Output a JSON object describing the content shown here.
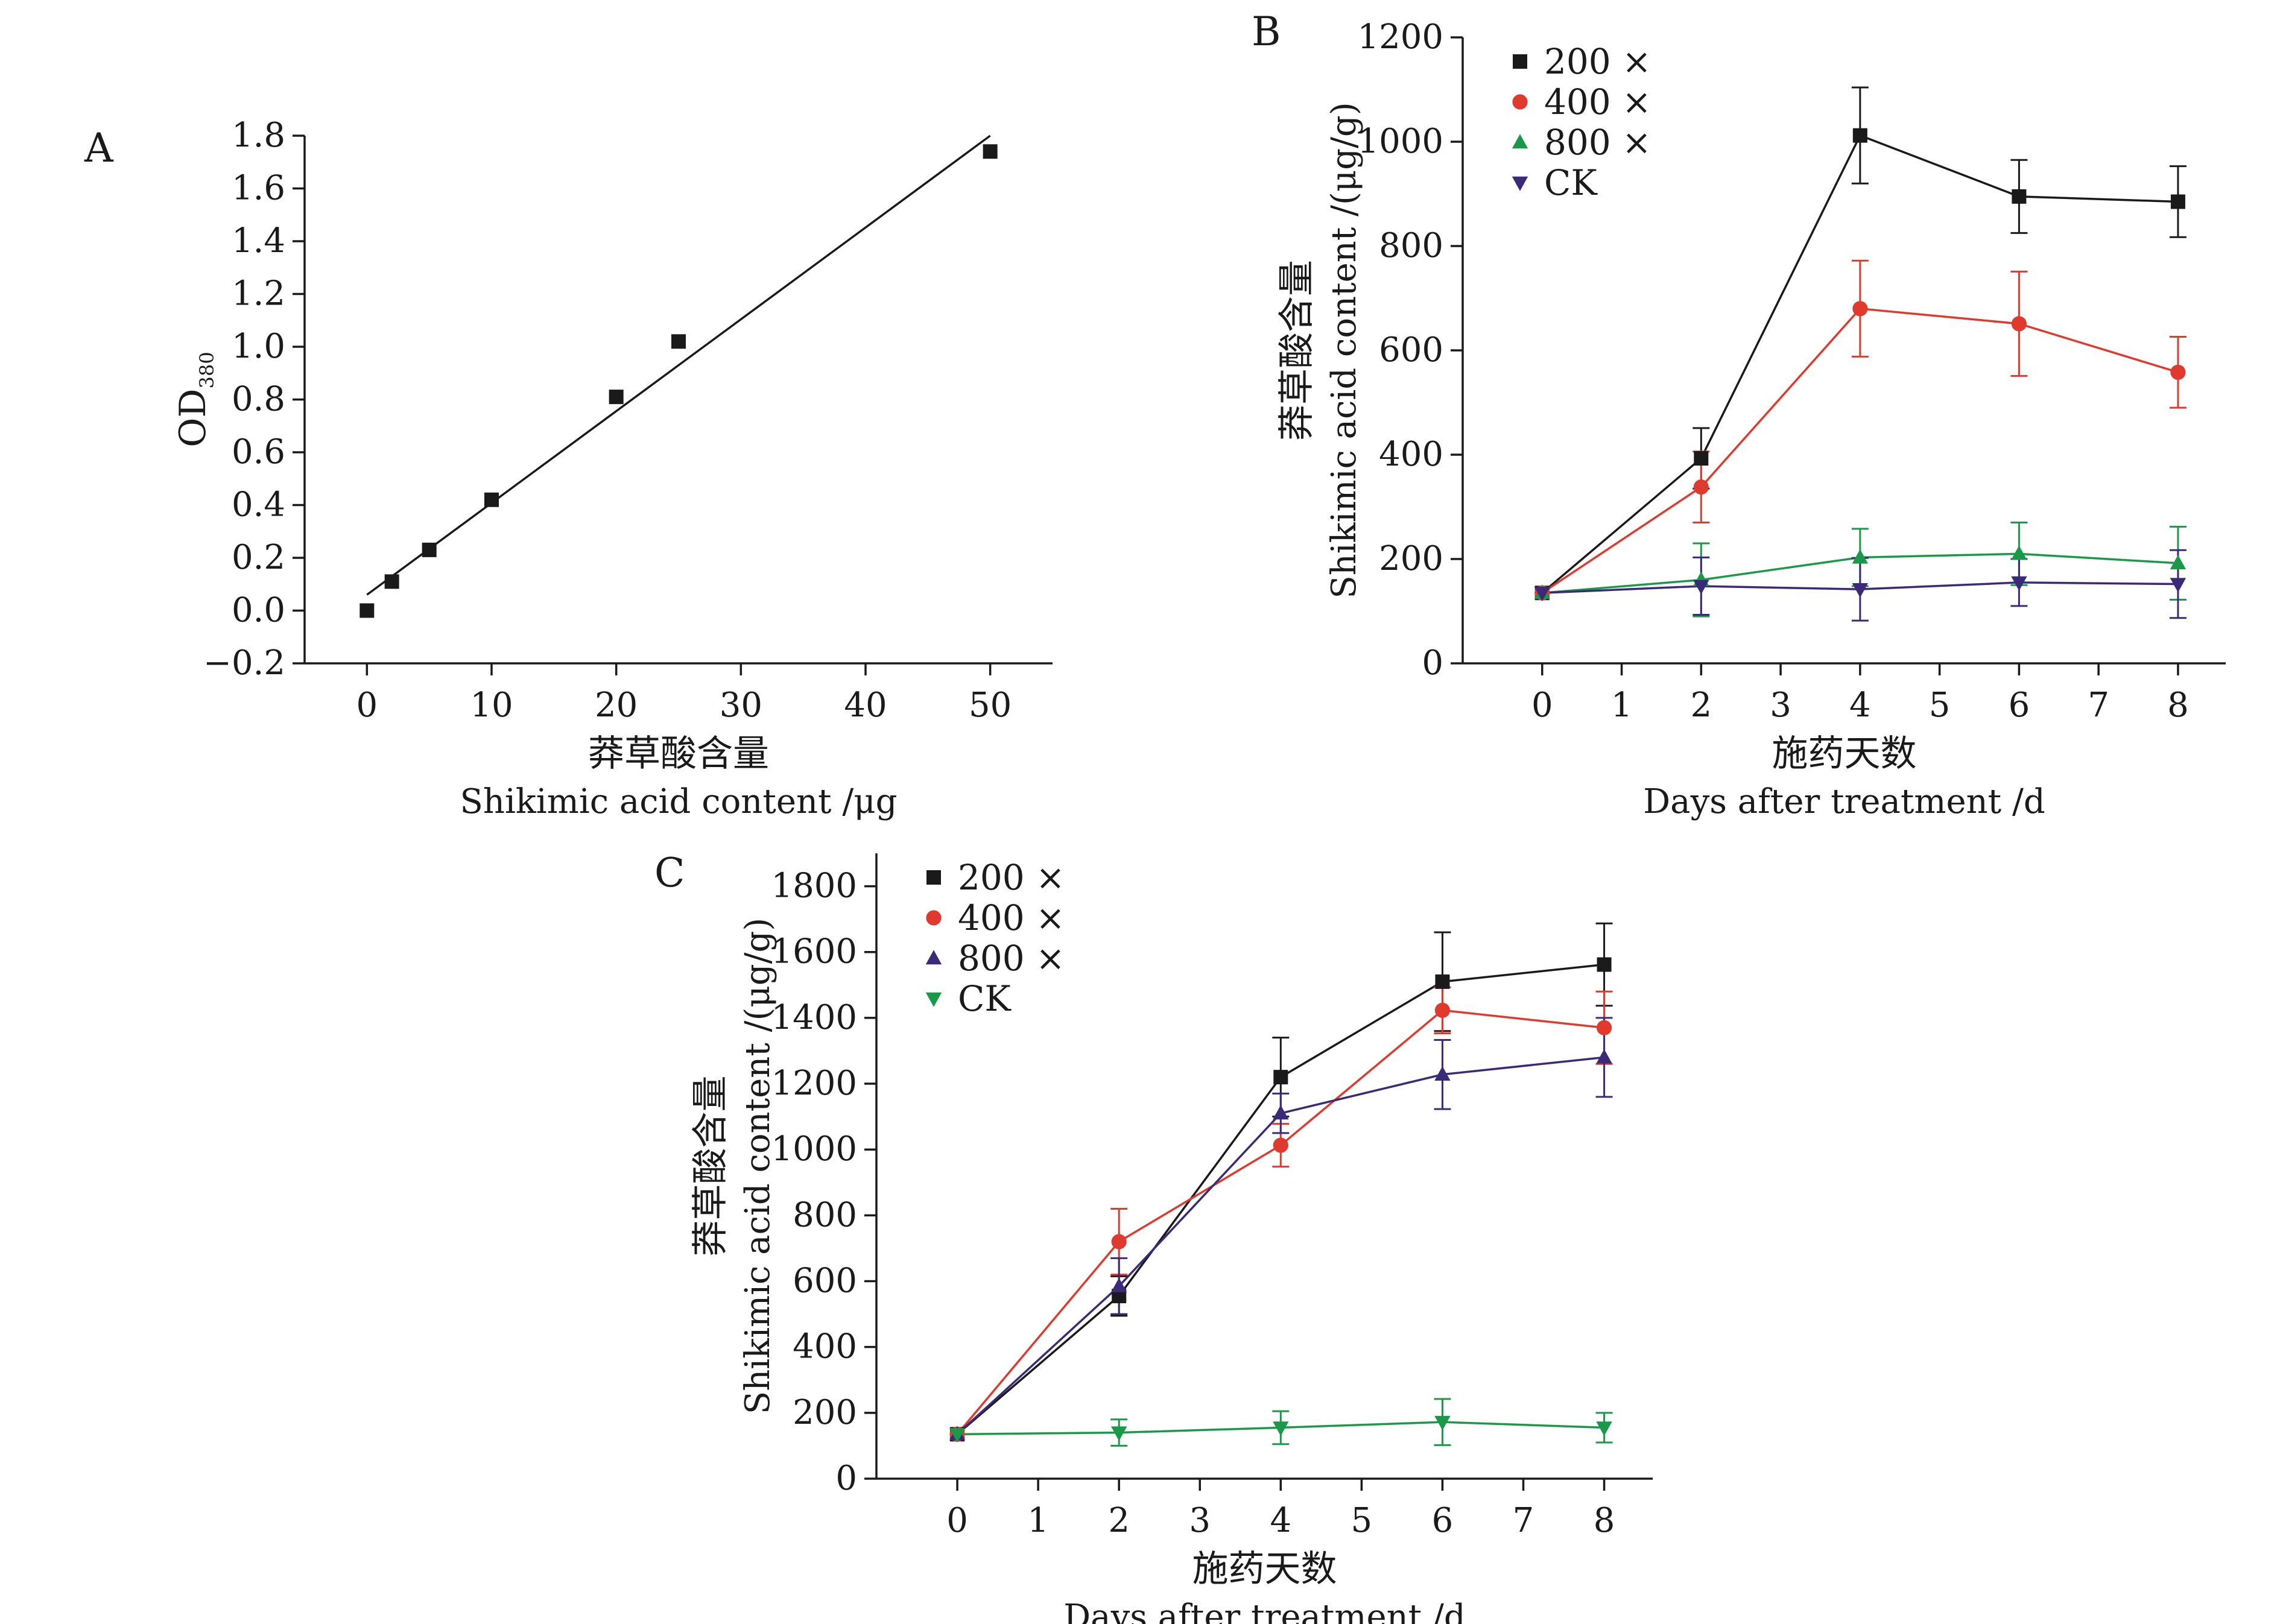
{
  "chart_data": [
    {
      "panel_label": "A",
      "type": "scatter",
      "xlabel_cn": "莽草酸含量",
      "xlabel_en": "Shikimic acid content /μg",
      "ylabel_main": "OD",
      "ylabel_sub": "380",
      "xlim": [
        -5,
        55
      ],
      "ylim": [
        -0.2,
        1.8
      ],
      "xticks": [
        0,
        10,
        20,
        30,
        40,
        50
      ],
      "xtick_labels": [
        "0",
        "10",
        "20",
        "30",
        "40",
        "50"
      ],
      "yticks": [
        -0.2,
        0.0,
        0.2,
        0.4,
        0.6,
        0.8,
        1.0,
        1.2,
        1.4,
        1.6,
        1.8
      ],
      "ytick_labels": [
        "−0.2",
        "0.0",
        "0.2",
        "0.4",
        "0.6",
        "0.8",
        "1.0",
        "1.2",
        "1.4",
        "1.6",
        "1.8"
      ],
      "series": [
        {
          "marker": "square",
          "color": "#1a1a1a",
          "x": [
            0,
            2,
            5,
            10,
            20,
            25,
            50
          ],
          "y": [
            0.0,
            0.11,
            0.23,
            0.42,
            0.81,
            1.02,
            1.74
          ]
        }
      ],
      "fit_line": {
        "x": [
          0,
          50
        ],
        "y": [
          0.06,
          1.8
        ],
        "color": "#1a1a1a"
      }
    },
    {
      "panel_label": "B",
      "type": "line",
      "xlabel_cn": "施药天数",
      "xlabel_en": "Days after treatment /d",
      "ylabel_cn": "莽草酸含量",
      "ylabel_en": "Shikimic acid content /(μg/g)",
      "xlim": [
        -1,
        8.6
      ],
      "ylim": [
        0,
        1200
      ],
      "xticks": [
        0,
        1,
        2,
        3,
        4,
        5,
        6,
        7,
        8
      ],
      "xtick_labels": [
        "0",
        "1",
        "2",
        "3",
        "4",
        "5",
        "6",
        "7",
        "8"
      ],
      "yticks": [
        0,
        200,
        400,
        600,
        800,
        1000,
        1200
      ],
      "ytick_labels": [
        "0",
        "200",
        "400",
        "600",
        "800",
        "1000",
        "1200"
      ],
      "legend_position": "top-left",
      "x": [
        0,
        2,
        4,
        6,
        8
      ],
      "series": [
        {
          "name": "200 ×",
          "marker": "square",
          "color": "#1a1a1a",
          "values": [
            135,
            393,
            1012,
            895,
            885
          ],
          "err": [
            0,
            58,
            92,
            70,
            68
          ]
        },
        {
          "name": "400 ×",
          "marker": "circle",
          "color": "#e03a2e",
          "values": [
            135,
            338,
            680,
            651,
            558
          ],
          "err": [
            0,
            68,
            92,
            100,
            68
          ]
        },
        {
          "name": "800 ×",
          "marker": "triangle-up",
          "color": "#1a9a48",
          "values": [
            135,
            160,
            203,
            210,
            192
          ],
          "err": [
            0,
            70,
            55,
            60,
            70
          ]
        },
        {
          "name": "CK",
          "marker": "triangle-down",
          "color": "#3b2a78",
          "values": [
            135,
            148,
            142,
            155,
            152
          ],
          "err": [
            0,
            55,
            60,
            45,
            65
          ]
        }
      ]
    },
    {
      "panel_label": "C",
      "type": "line",
      "xlabel_cn": "施药天数",
      "xlabel_en": "Days after treatment /d",
      "ylabel_cn": "莽草酸含量",
      "ylabel_en": "Shikimic acid content /(μg/g)",
      "xlim": [
        -1,
        8.6
      ],
      "ylim": [
        0,
        1900
      ],
      "xticks": [
        0,
        1,
        2,
        3,
        4,
        5,
        6,
        7,
        8
      ],
      "xtick_labels": [
        "0",
        "1",
        "2",
        "3",
        "4",
        "5",
        "6",
        "7",
        "8"
      ],
      "yticks": [
        0,
        200,
        400,
        600,
        800,
        1000,
        1200,
        1400,
        1600,
        1800
      ],
      "ytick_labels": [
        "0",
        "200",
        "400",
        "600",
        "800",
        "1000",
        "1200",
        "1400",
        "1600",
        "1800"
      ],
      "legend_position": "top-left",
      "x": [
        0,
        2,
        4,
        6,
        8
      ],
      "series": [
        {
          "name": "200 ×",
          "marker": "square",
          "color": "#1a1a1a",
          "values": [
            135,
            555,
            1220,
            1510,
            1562
          ],
          "err": [
            0,
            60,
            120,
            150,
            125
          ]
        },
        {
          "name": "400 ×",
          "marker": "circle",
          "color": "#e03a2e",
          "values": [
            135,
            720,
            1013,
            1423,
            1370
          ],
          "err": [
            0,
            100,
            65,
            70,
            110
          ]
        },
        {
          "name": "800 ×",
          "marker": "triangle-up",
          "color": "#3b2a78",
          "values": [
            135,
            585,
            1110,
            1228,
            1280
          ],
          "err": [
            0,
            85,
            60,
            105,
            120
          ]
        },
        {
          "name": "CK",
          "marker": "triangle-down",
          "color": "#1a9a48",
          "values": [
            135,
            140,
            155,
            172,
            155
          ],
          "err": [
            0,
            40,
            50,
            70,
            45
          ]
        }
      ]
    }
  ]
}
